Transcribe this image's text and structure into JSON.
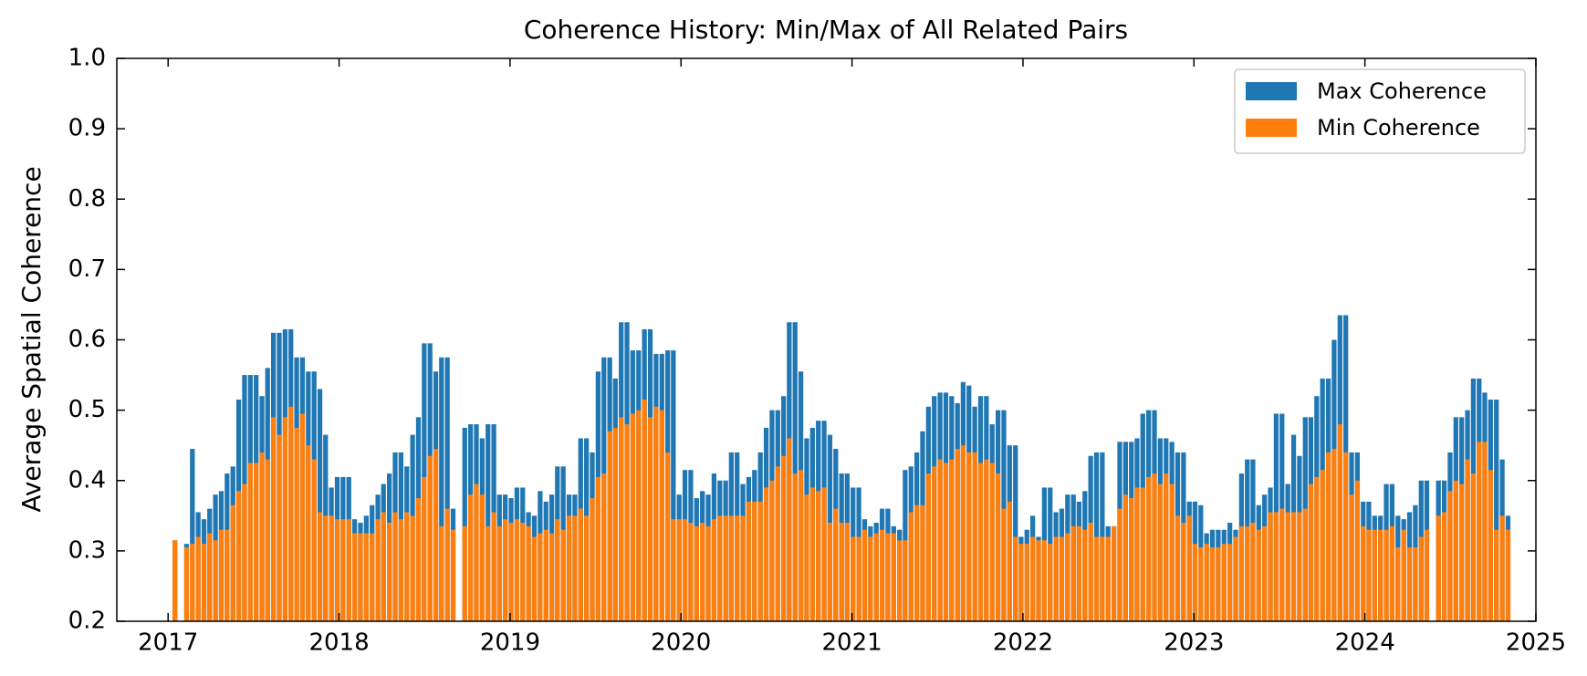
{
  "chart_data": {
    "type": "bar",
    "title": "Coherence History: Min/Max of All Related Pairs",
    "y_label": "Average Spatial Coherence",
    "xlim": [
      2016.7,
      2025.0
    ],
    "xticks": [
      2017,
      2018,
      2019,
      2020,
      2021,
      2022,
      2023,
      2024,
      2025
    ],
    "ylim": [
      0.2,
      1.0
    ],
    "yticks": [
      0.2,
      0.3,
      0.4,
      0.5,
      0.6,
      0.7,
      0.8,
      0.9,
      {
        "value": 1.0,
        "label": "1.0"
      }
    ],
    "legend": "upper right",
    "x": [
      2017.04,
      2017.108,
      2017.142,
      2017.176,
      2017.21,
      2017.243,
      2017.277,
      2017.311,
      2017.345,
      2017.379,
      2017.413,
      2017.447,
      2017.481,
      2017.515,
      2017.549,
      2017.582,
      2017.616,
      2017.65,
      2017.684,
      2017.718,
      2017.752,
      2017.786,
      2017.82,
      2017.854,
      2017.888,
      2017.921,
      2017.955,
      2017.989,
      2018.023,
      2018.057,
      2018.091,
      2018.125,
      2018.159,
      2018.193,
      2018.227,
      2018.26,
      2018.294,
      2018.328,
      2018.362,
      2018.396,
      2018.43,
      2018.464,
      2018.498,
      2018.532,
      2018.566,
      2018.599,
      2018.633,
      2018.667,
      2018.735,
      2018.769,
      2018.803,
      2018.837,
      2018.871,
      2018.905,
      2018.938,
      2018.972,
      2019.006,
      2019.04,
      2019.074,
      2019.108,
      2019.142,
      2019.176,
      2019.21,
      2019.244,
      2019.277,
      2019.311,
      2019.345,
      2019.379,
      2019.413,
      2019.447,
      2019.481,
      2019.515,
      2019.549,
      2019.583,
      2019.616,
      2019.65,
      2019.684,
      2019.718,
      2019.752,
      2019.786,
      2019.82,
      2019.854,
      2019.888,
      2019.922,
      2019.955,
      2019.989,
      2020.023,
      2020.057,
      2020.091,
      2020.125,
      2020.159,
      2020.193,
      2020.227,
      2020.261,
      2020.294,
      2020.328,
      2020.362,
      2020.396,
      2020.43,
      2020.464,
      2020.498,
      2020.532,
      2020.566,
      2020.6,
      2020.633,
      2020.667,
      2020.701,
      2020.735,
      2020.769,
      2020.803,
      2020.837,
      2020.871,
      2020.905,
      2020.939,
      2020.972,
      2021.006,
      2021.04,
      2021.074,
      2021.108,
      2021.142,
      2021.176,
      2021.21,
      2021.244,
      2021.278,
      2021.311,
      2021.345,
      2021.379,
      2021.413,
      2021.447,
      2021.481,
      2021.515,
      2021.549,
      2021.583,
      2021.617,
      2021.65,
      2021.684,
      2021.718,
      2021.752,
      2021.786,
      2021.82,
      2021.854,
      2021.888,
      2021.922,
      2021.956,
      2021.989,
      2022.023,
      2022.057,
      2022.091,
      2022.125,
      2022.159,
      2022.193,
      2022.227,
      2022.261,
      2022.295,
      2022.328,
      2022.362,
      2022.396,
      2022.43,
      2022.464,
      2022.498,
      2022.532,
      2022.566,
      2022.6,
      2022.634,
      2022.667,
      2022.701,
      2022.735,
      2022.769,
      2022.803,
      2022.837,
      2022.871,
      2022.905,
      2022.939,
      2022.973,
      2023.006,
      2023.04,
      2023.074,
      2023.108,
      2023.142,
      2023.176,
      2023.21,
      2023.244,
      2023.278,
      2023.312,
      2023.345,
      2023.379,
      2023.413,
      2023.447,
      2023.481,
      2023.515,
      2023.549,
      2023.583,
      2023.617,
      2023.651,
      2023.684,
      2023.718,
      2023.752,
      2023.786,
      2023.82,
      2023.854,
      2023.888,
      2023.922,
      2023.956,
      2023.99,
      2024.023,
      2024.057,
      2024.091,
      2024.125,
      2024.159,
      2024.193,
      2024.227,
      2024.261,
      2024.295,
      2024.329,
      2024.362,
      2024.43,
      2024.464,
      2024.498,
      2024.532,
      2024.566,
      2024.6,
      2024.634,
      2024.668,
      2024.701,
      2024.735,
      2024.769,
      2024.803,
      2024.837
    ],
    "series": [
      {
        "name": "Max Coherence",
        "color": "#1f77b4",
        "values": [
          0.315,
          0.31,
          0.445,
          0.355,
          0.345,
          0.36,
          0.38,
          0.385,
          0.41,
          0.42,
          0.515,
          0.55,
          0.55,
          0.55,
          0.52,
          0.56,
          0.61,
          0.61,
          0.615,
          0.615,
          0.575,
          0.575,
          0.555,
          0.555,
          0.53,
          0.465,
          0.39,
          0.405,
          0.405,
          0.405,
          0.345,
          0.34,
          0.35,
          0.365,
          0.38,
          0.395,
          0.41,
          0.44,
          0.44,
          0.42,
          0.465,
          0.49,
          0.595,
          0.595,
          0.555,
          0.575,
          0.575,
          0.36,
          0.475,
          0.48,
          0.48,
          0.46,
          0.48,
          0.48,
          0.38,
          0.38,
          0.375,
          0.39,
          0.39,
          0.355,
          0.35,
          0.385,
          0.37,
          0.38,
          0.42,
          0.42,
          0.38,
          0.38,
          0.46,
          0.46,
          0.44,
          0.555,
          0.575,
          0.575,
          0.545,
          0.625,
          0.625,
          0.585,
          0.585,
          0.615,
          0.615,
          0.58,
          0.58,
          0.585,
          0.585,
          0.38,
          0.415,
          0.415,
          0.375,
          0.385,
          0.38,
          0.41,
          0.4,
          0.4,
          0.44,
          0.44,
          0.395,
          0.405,
          0.415,
          0.44,
          0.475,
          0.5,
          0.5,
          0.52,
          0.625,
          0.625,
          0.555,
          0.46,
          0.475,
          0.485,
          0.485,
          0.465,
          0.445,
          0.41,
          0.41,
          0.39,
          0.39,
          0.345,
          0.335,
          0.34,
          0.36,
          0.36,
          0.335,
          0.33,
          0.415,
          0.42,
          0.44,
          0.47,
          0.505,
          0.52,
          0.525,
          0.525,
          0.52,
          0.51,
          0.54,
          0.535,
          0.505,
          0.52,
          0.52,
          0.48,
          0.5,
          0.5,
          0.45,
          0.45,
          0.32,
          0.33,
          0.35,
          0.32,
          0.39,
          0.39,
          0.355,
          0.36,
          0.38,
          0.38,
          0.37,
          0.385,
          0.435,
          0.44,
          0.44,
          0.335,
          0.335,
          0.455,
          0.455,
          0.455,
          0.46,
          0.495,
          0.5,
          0.5,
          0.46,
          0.46,
          0.455,
          0.44,
          0.44,
          0.37,
          0.37,
          0.365,
          0.325,
          0.33,
          0.33,
          0.33,
          0.34,
          0.33,
          0.41,
          0.43,
          0.43,
          0.365,
          0.38,
          0.39,
          0.495,
          0.495,
          0.395,
          0.465,
          0.435,
          0.49,
          0.49,
          0.52,
          0.545,
          0.545,
          0.6,
          0.635,
          0.635,
          0.44,
          0.44,
          0.37,
          0.37,
          0.35,
          0.35,
          0.395,
          0.395,
          0.35,
          0.345,
          0.355,
          0.365,
          0.4,
          0.4,
          0.4,
          0.4,
          0.44,
          0.49,
          0.49,
          0.5,
          0.545,
          0.545,
          0.525,
          0.515,
          0.515,
          0.43,
          0.35
        ]
      },
      {
        "name": "Min Coherence",
        "color": "#ff7f0e",
        "values": [
          0.315,
          0.305,
          0.31,
          0.32,
          0.31,
          0.325,
          0.315,
          0.33,
          0.33,
          0.365,
          0.385,
          0.395,
          0.425,
          0.425,
          0.44,
          0.43,
          0.49,
          0.465,
          0.49,
          0.505,
          0.475,
          0.495,
          0.45,
          0.43,
          0.355,
          0.35,
          0.35,
          0.345,
          0.345,
          0.345,
          0.325,
          0.325,
          0.325,
          0.325,
          0.345,
          0.355,
          0.34,
          0.355,
          0.345,
          0.355,
          0.35,
          0.375,
          0.405,
          0.435,
          0.445,
          0.335,
          0.36,
          0.33,
          0.335,
          0.38,
          0.395,
          0.38,
          0.335,
          0.355,
          0.335,
          0.345,
          0.34,
          0.345,
          0.34,
          0.335,
          0.32,
          0.325,
          0.33,
          0.325,
          0.345,
          0.33,
          0.35,
          0.35,
          0.36,
          0.35,
          0.375,
          0.405,
          0.41,
          0.47,
          0.475,
          0.49,
          0.48,
          0.495,
          0.5,
          0.515,
          0.49,
          0.505,
          0.5,
          0.44,
          0.345,
          0.345,
          0.345,
          0.34,
          0.335,
          0.34,
          0.335,
          0.345,
          0.35,
          0.35,
          0.35,
          0.35,
          0.35,
          0.37,
          0.37,
          0.37,
          0.39,
          0.4,
          0.42,
          0.435,
          0.46,
          0.41,
          0.415,
          0.38,
          0.39,
          0.385,
          0.39,
          0.34,
          0.36,
          0.34,
          0.34,
          0.32,
          0.32,
          0.33,
          0.32,
          0.325,
          0.33,
          0.325,
          0.325,
          0.315,
          0.315,
          0.355,
          0.365,
          0.365,
          0.41,
          0.42,
          0.43,
          0.425,
          0.43,
          0.445,
          0.45,
          0.44,
          0.44,
          0.425,
          0.43,
          0.425,
          0.41,
          0.36,
          0.37,
          0.32,
          0.31,
          0.31,
          0.32,
          0.315,
          0.315,
          0.31,
          0.32,
          0.32,
          0.325,
          0.335,
          0.335,
          0.33,
          0.34,
          0.32,
          0.32,
          0.32,
          0.335,
          0.36,
          0.38,
          0.375,
          0.39,
          0.39,
          0.405,
          0.41,
          0.395,
          0.41,
          0.395,
          0.35,
          0.34,
          0.35,
          0.31,
          0.305,
          0.31,
          0.305,
          0.305,
          0.31,
          0.31,
          0.32,
          0.335,
          0.335,
          0.34,
          0.33,
          0.335,
          0.355,
          0.355,
          0.36,
          0.355,
          0.355,
          0.355,
          0.36,
          0.395,
          0.405,
          0.415,
          0.44,
          0.445,
          0.48,
          0.44,
          0.38,
          0.4,
          0.335,
          0.33,
          0.33,
          0.33,
          0.33,
          0.335,
          0.305,
          0.33,
          0.305,
          0.305,
          0.32,
          0.33,
          0.35,
          0.355,
          0.385,
          0.4,
          0.395,
          0.43,
          0.41,
          0.455,
          0.455,
          0.415,
          0.33,
          0.35,
          0.33
        ]
      }
    ]
  }
}
